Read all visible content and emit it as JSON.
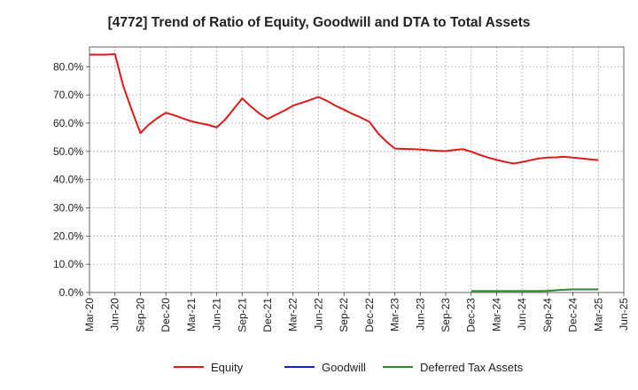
{
  "chart_data": {
    "type": "line",
    "title": "[4772]  Trend of Ratio of Equity, Goodwill and DTA to Total Assets",
    "xlabel": "",
    "ylabel": "",
    "ylim": [
      0,
      0.87
    ],
    "yticks": [
      0,
      0.1,
      0.2,
      0.3,
      0.4,
      0.5,
      0.6,
      0.7,
      0.8
    ],
    "ytick_labels": [
      "0.0%",
      "10.0%",
      "20.0%",
      "30.0%",
      "40.0%",
      "50.0%",
      "60.0%",
      "70.0%",
      "80.0%"
    ],
    "xtick_labels": [
      "Mar-20",
      "Jun-20",
      "Sep-20",
      "Dec-20",
      "Mar-21",
      "Jun-21",
      "Sep-21",
      "Dec-21",
      "Mar-22",
      "Jun-22",
      "Sep-22",
      "Dec-22",
      "Mar-23",
      "Jun-23",
      "Sep-23",
      "Dec-23",
      "Mar-24",
      "Jun-24",
      "Sep-24",
      "Dec-24",
      "Mar-25",
      "Jun-25"
    ],
    "grid": true,
    "legend_position": "bottom",
    "series": [
      {
        "name": "Equity",
        "color": "#dd1a1a",
        "x": [
          0,
          1,
          2,
          3,
          4,
          5,
          6,
          7,
          8,
          9,
          10,
          11,
          12,
          13,
          14,
          15,
          16,
          17,
          18,
          19,
          20,
          21,
          22,
          23,
          24,
          25,
          26,
          27,
          28,
          29,
          30,
          31,
          32,
          33,
          34,
          35,
          36,
          37,
          38,
          39,
          40,
          41,
          42,
          43,
          44,
          45,
          46,
          47,
          48,
          49,
          50,
          51,
          52,
          53,
          54,
          55,
          56,
          57,
          58,
          59,
          60
        ],
        "values": [
          0.843,
          0.843,
          0.843,
          0.845,
          0.73,
          0.645,
          0.565,
          0.595,
          0.618,
          0.637,
          0.628,
          0.617,
          0.607,
          0.6,
          0.594,
          0.585,
          0.613,
          0.65,
          0.688,
          0.66,
          0.635,
          0.615,
          0.63,
          0.645,
          0.662,
          0.672,
          0.682,
          0.693,
          0.679,
          0.662,
          0.648,
          0.633,
          0.62,
          0.605,
          0.565,
          0.535,
          0.51,
          0.509,
          0.508,
          0.507,
          0.504,
          0.502,
          0.501,
          0.505,
          0.508,
          0.499,
          0.488,
          0.478,
          0.47,
          0.463,
          0.457,
          0.462,
          0.469,
          0.475,
          0.478,
          0.479,
          0.481,
          0.478,
          0.475,
          0.472,
          0.469
        ]
      },
      {
        "name": "Goodwill",
        "color": "#1020cc",
        "x": [],
        "values": []
      },
      {
        "name": "Deferred Tax Assets",
        "color": "#2a8a2a",
        "x": [
          45,
          46,
          47,
          48,
          49,
          50,
          51,
          52,
          53,
          54,
          55,
          56,
          57,
          58,
          59,
          60
        ],
        "values": [
          0.005,
          0.005,
          0.005,
          0.005,
          0.005,
          0.005,
          0.005,
          0.005,
          0.005,
          0.006,
          0.008,
          0.01,
          0.011,
          0.011,
          0.011,
          0.011
        ]
      }
    ]
  }
}
